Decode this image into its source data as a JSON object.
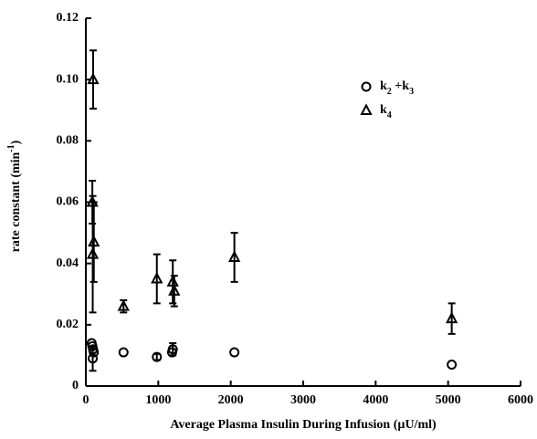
{
  "chart_data": {
    "type": "scatter",
    "xlabel": "Average Plasma Insulin During Infusion (µU/ml)",
    "ylabel": "rate constant (min-1)",
    "xlim": [
      0,
      6000
    ],
    "xticks": [
      0,
      1000,
      2000,
      3000,
      4000,
      5000,
      6000
    ],
    "ylim": [
      0,
      0.12
    ],
    "yticks": [
      0,
      0.02,
      0.04,
      0.06,
      0.08,
      {
        "value": 0.1,
        "label": "0.10"
      },
      0.12
    ],
    "series": [
      {
        "name": "k2 +k3",
        "marker": "circle",
        "color": "#000000",
        "x": [
          80,
          90,
          100,
          110,
          95,
          520,
          980,
          1200,
          1190,
          2050,
          5050
        ],
        "values": [
          0.014,
          0.013,
          0.012,
          0.011,
          0.009,
          0.011,
          0.0095,
          0.012,
          0.011,
          0.011,
          0.007
        ],
        "errors": [
          null,
          null,
          null,
          null,
          0.004,
          null,
          0.001,
          0.002,
          null,
          null,
          null
        ]
      },
      {
        "name": "k4",
        "marker": "triangle",
        "color": "#000000",
        "x": [
          100,
          90,
          110,
          95,
          520,
          980,
          1200,
          1220,
          2050,
          5050
        ],
        "values": [
          0.1,
          0.06,
          0.047,
          0.043,
          0.026,
          0.035,
          0.034,
          0.031,
          0.042,
          0.022
        ],
        "errors": [
          0.0095,
          0.007,
          0.013,
          0.019,
          0.002,
          0.008,
          0.007,
          0.005,
          0.008,
          0.005
        ]
      }
    ]
  }
}
